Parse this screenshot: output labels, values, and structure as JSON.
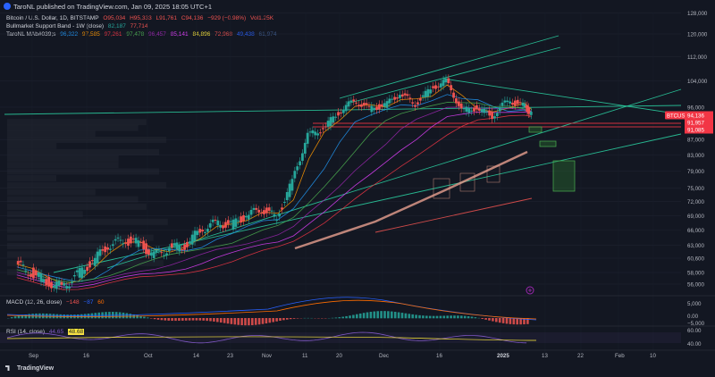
{
  "header": {
    "publisher": "TaroNL published on TradingView.com, Jan 09, 2025 18:05 UTC+1"
  },
  "legend": {
    "line1": {
      "symbol": "Bitcoin / U.S. Dollar, 1D, BITSTAMP",
      "open": "O95,034",
      "high": "H95,333",
      "low": "L91,761",
      "close": "C94,136",
      "change": "−929 (−0.98%)",
      "vol": "Vol1.25K"
    },
    "line2": {
      "name": "Bullmarket Support Band - 1W (close)",
      "v1": "82,187",
      "v2": "77,714"
    },
    "line3": {
      "name": "TaroNL MAb#039;s",
      "values": [
        "96,322",
        "97,585",
        "97,261",
        "97,478",
        "96,457",
        "85,141",
        "84,896",
        "72,968",
        "49,438",
        "61,974"
      ]
    },
    "macd": {
      "label": "MACD (12, 26, close)",
      "v1": "−148",
      "v2": "−87",
      "v3": "60"
    },
    "rsi": {
      "label": "RSI (14, close)",
      "v1": "44.65",
      "v2": "48.68"
    }
  },
  "colors": {
    "background": "#131722",
    "up": "#26a69a",
    "down": "#ef5350",
    "trendline": "#2bd4a4",
    "price_tag": "#f23645",
    "macd_line": "#2962ff",
    "signal_line": "#ff6d00",
    "rsi_line": "#7e57c2"
  },
  "branding": {
    "name": "TradingView"
  },
  "chart_data": {
    "type": "line",
    "title": "Bitcoin / U.S. Dollar, 1D, BITSTAMP",
    "price_axis": {
      "scale": "log",
      "ticks": [
        "128,000",
        "120,000",
        "112,000",
        "104,000",
        "96,000",
        "87,000",
        "83,000",
        "79,000",
        "75,000",
        "72,000",
        "69,000",
        "66,000",
        "63,000",
        "60,600",
        "58,000",
        "56,000"
      ]
    },
    "price_tags": [
      {
        "label": "BTCUSD",
        "value": "94,136"
      },
      {
        "label": "",
        "value": "91,957"
      },
      {
        "label": "",
        "value": "91,085"
      }
    ],
    "macd_axis": {
      "ticks": [
        "5,000",
        "0.00",
        "−5,000"
      ]
    },
    "rsi_axis": {
      "ticks": [
        "60.00",
        "40.00"
      ]
    },
    "time_axis": {
      "ticks": [
        "Sep",
        "16",
        "Oct",
        "14",
        "23",
        "Nov",
        "11",
        "20",
        "Dec",
        "16",
        "2025",
        "13",
        "22",
        "Feb",
        "10"
      ]
    },
    "series": [
      {
        "name": "BTCUSD",
        "x": [
          "Aug 28",
          "Sep 1",
          "Sep 5",
          "Sep 9",
          "Sep 13",
          "Sep 17",
          "Sep 21",
          "Sep 25",
          "Sep 29",
          "Oct 3",
          "Oct 7",
          "Oct 11",
          "Oct 15",
          "Oct 19",
          "Oct 23",
          "Oct 27",
          "Oct 31",
          "Nov 4",
          "Nov 8",
          "Nov 12",
          "Nov 16",
          "Nov 20",
          "Nov 24",
          "Nov 28",
          "Dec 2",
          "Dec 6",
          "Dec 10",
          "Dec 14",
          "Dec 18",
          "Dec 22",
          "Dec 26",
          "Dec 30",
          "Jan 3",
          "Jan 7",
          "Jan 9"
        ],
        "y": [
          59500,
          58000,
          56500,
          55500,
          57500,
          60000,
          63000,
          64000,
          63500,
          61000,
          62500,
          63000,
          66000,
          67500,
          67000,
          69000,
          70500,
          68500,
          76500,
          88000,
          90000,
          94500,
          98000,
          95500,
          96500,
          100000,
          97000,
          101500,
          104000,
          95000,
          95800,
          93500,
          98000,
          96500,
          94136
        ]
      }
    ],
    "ylim": [
      55000,
      128000
    ],
    "grid": true
  }
}
